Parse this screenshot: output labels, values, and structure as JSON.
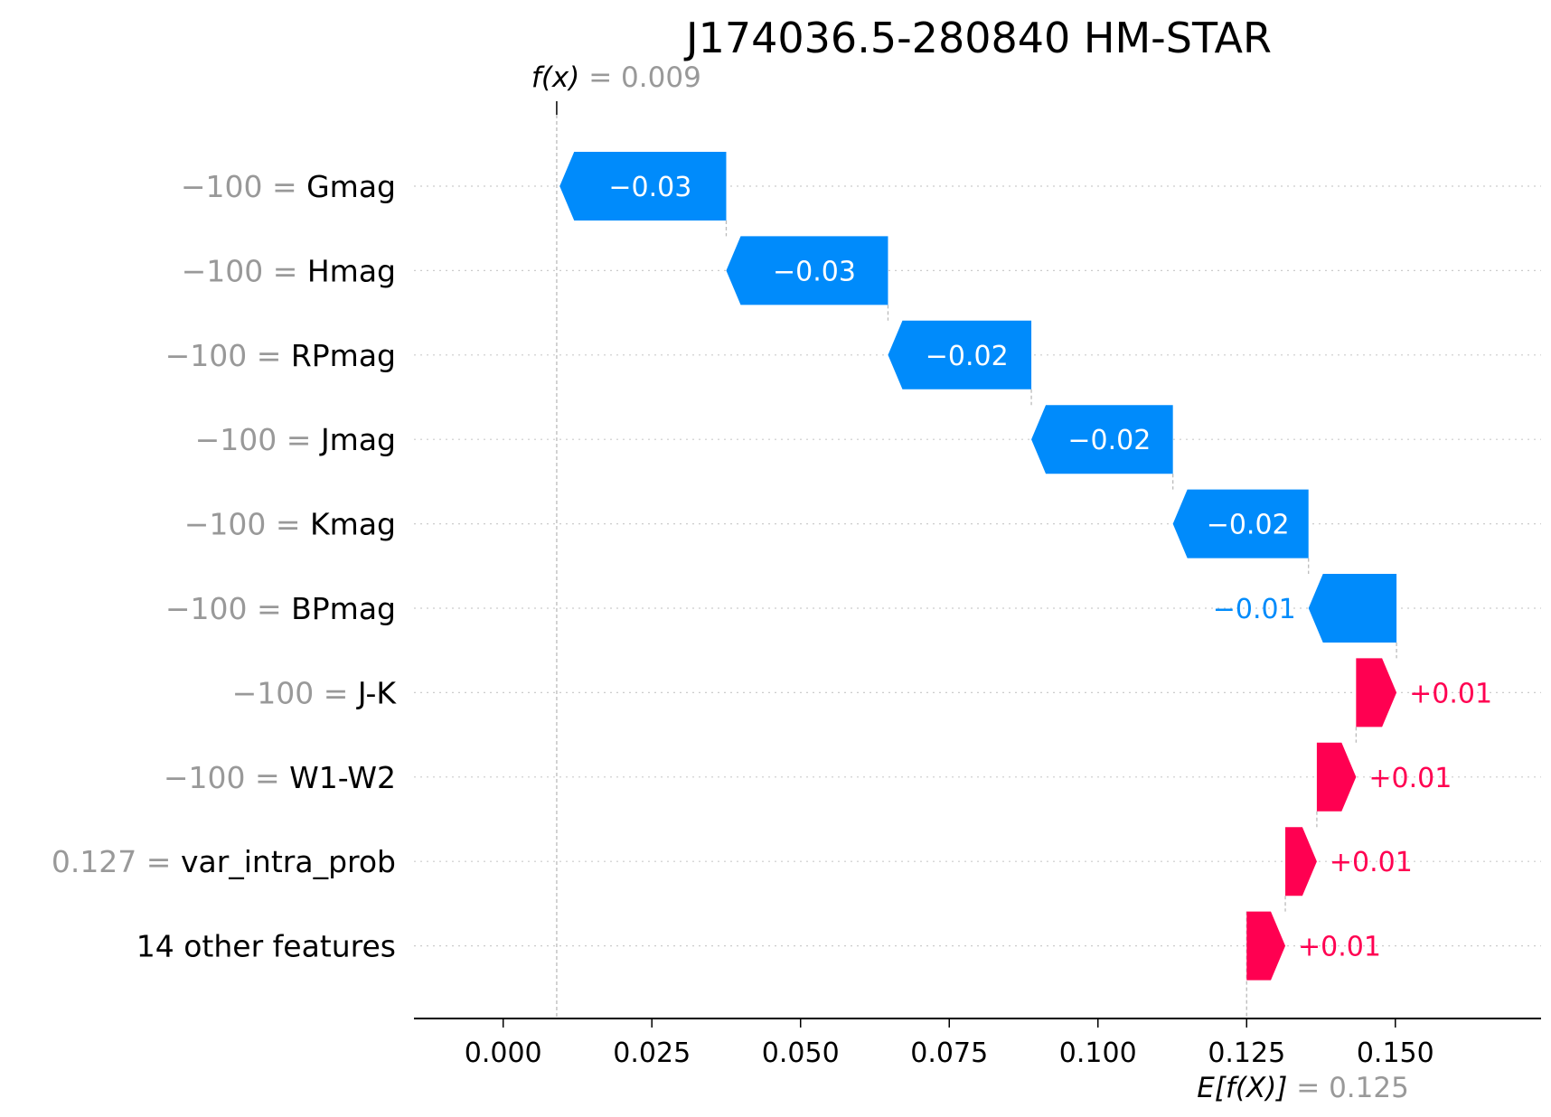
{
  "chart_data": {
    "type": "waterfall",
    "title": "J174036.5-280840 HM-STAR",
    "fx": {
      "label": "f(x)",
      "value_text": "0.009",
      "value": 0.009
    },
    "base": {
      "label": "E[f(X)]",
      "value_text": "0.125",
      "value": 0.125
    },
    "features": [
      {
        "value_text": "−100",
        "name": "Gmag",
        "start": 0.0375,
        "end": 0.0095,
        "label": "−0.03"
      },
      {
        "value_text": "−100",
        "name": "Hmag",
        "start": 0.0647,
        "end": 0.0375,
        "label": "−0.03"
      },
      {
        "value_text": "−100",
        "name": "RPmag",
        "start": 0.0888,
        "end": 0.0647,
        "label": "−0.02"
      },
      {
        "value_text": "−100",
        "name": "Jmag",
        "start": 0.1126,
        "end": 0.0888,
        "label": "−0.02"
      },
      {
        "value_text": "−100",
        "name": "Kmag",
        "start": 0.1354,
        "end": 0.1126,
        "label": "−0.02"
      },
      {
        "value_text": "−100",
        "name": "BPmag",
        "start": 0.1502,
        "end": 0.1354,
        "label": "−0.01"
      },
      {
        "value_text": "−100",
        "name": "J-K",
        "start": 0.1434,
        "end": 0.1502,
        "label": "+0.01"
      },
      {
        "value_text": "−100",
        "name": "W1-W2",
        "start": 0.1368,
        "end": 0.1434,
        "label": "+0.01"
      },
      {
        "value_text": "0.127",
        "name": "var_intra_prob",
        "start": 0.1315,
        "end": 0.1368,
        "label": "+0.01"
      },
      {
        "value_text": "",
        "name": "14 other features",
        "start": 0.125,
        "end": 0.1315,
        "label": "+0.01"
      }
    ],
    "x_ticks": [
      0.0,
      0.025,
      0.05,
      0.075,
      0.1,
      0.125,
      0.15
    ],
    "x_tick_labels": [
      "0.000",
      "0.025",
      "0.050",
      "0.075",
      "0.100",
      "0.125",
      "0.150"
    ],
    "xlim": [
      -0.015,
      0.1745
    ],
    "colors": {
      "negative": "#008bfb",
      "positive": "#ff0051",
      "muted": "#999999",
      "text": "#000000",
      "guide": "#bbbbbb",
      "grid": "#cccccc"
    }
  }
}
